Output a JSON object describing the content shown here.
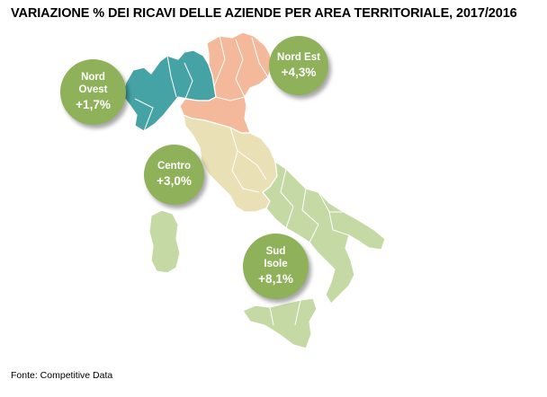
{
  "title": "VARIAZIONE % DEI RICAVI DELLE AZIENDE PER AREA TERRITORIALE, 2017/2016",
  "source": "Fonte: Competitive Data",
  "colors": {
    "nord_ovest": "#46a3a5",
    "nord_est": "#f3b99a",
    "centro": "#e9e0b6",
    "sud_isole": "#c5d9a4",
    "border": "#ffffff",
    "bubble": "#8fb15a"
  },
  "areas": [
    {
      "id": "nord-ovest",
      "name_line1": "Nord",
      "name_line2": "Ovest",
      "value": "+1,7%"
    },
    {
      "id": "nord-est",
      "name_line1": "Nord Est",
      "name_line2": "",
      "value": "+4,3%"
    },
    {
      "id": "centro",
      "name_line1": "Centro",
      "name_line2": "",
      "value": "+3,0%"
    },
    {
      "id": "sud-isole",
      "name_line1": "Sud",
      "name_line2": "Isole",
      "value": "+8,1%"
    }
  ]
}
